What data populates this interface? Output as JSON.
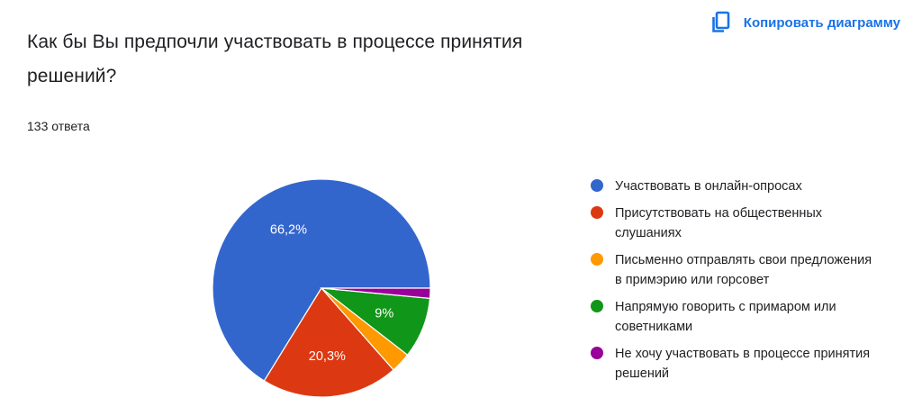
{
  "header": {
    "copy_label": "Копировать диаграмму",
    "copy_icon": "copy-icon"
  },
  "question": {
    "title": "Как бы Вы предпочли участвовать в процессе принятия решений?",
    "response_count": "133 ответа"
  },
  "chart_data": {
    "type": "pie",
    "title": "Как бы Вы предпочли участвовать в процессе принятия решений?",
    "categories": [
      "Участвовать в онлайн-опросах",
      "Присутствовать на общественных слушаниях",
      "Письменно отправлять свои предложения в примэрию или горсовет",
      "Напрямую говорить с примаром или советниками",
      "Не хочу участвовать в процессе принятия решений"
    ],
    "values": [
      66.2,
      20.3,
      3.0,
      9.0,
      1.5
    ],
    "value_unit": "%",
    "data_labels": [
      "66,2%",
      "20,3%",
      "",
      "9%",
      ""
    ],
    "colors": [
      "#3366cc",
      "#dc3912",
      "#ff9900",
      "#109618",
      "#990099"
    ],
    "legend_position": "right"
  }
}
